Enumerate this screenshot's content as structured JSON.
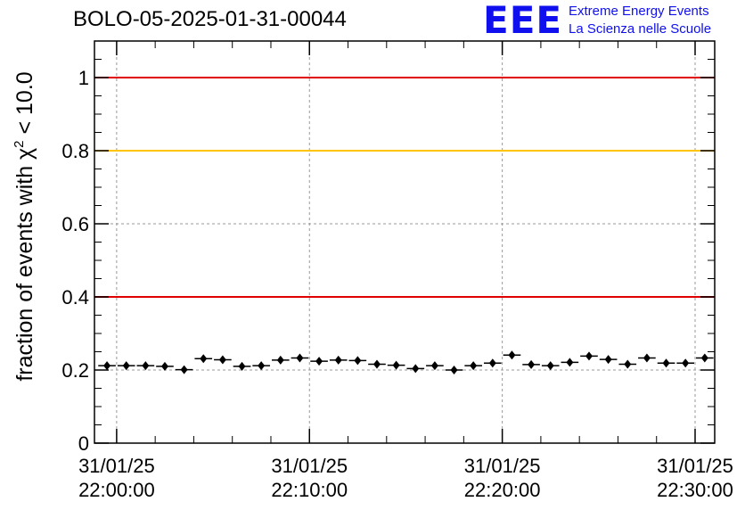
{
  "title": "BOLO-05-2025-01-31-00044",
  "logo": {
    "mark": "EEE",
    "line1": "Extreme Energy Events",
    "line2": "La Scienza nelle Scuole",
    "color": "#1010ee"
  },
  "chart_data": {
    "type": "scatter",
    "title": "BOLO-05-2025-01-31-00044",
    "xlabel": "",
    "ylabel_parts": {
      "base": "fraction of events with ",
      "symbol": "χ",
      "superscript": "2",
      "tail": " < 10.0"
    },
    "ylim": [
      0,
      1.1
    ],
    "yticks": [
      0,
      0.2,
      0.4,
      0.6,
      0.8,
      1
    ],
    "ytick_labels": [
      "0",
      "0.2",
      "0.4",
      "0.6",
      "0.8",
      "1"
    ],
    "xlim": [
      "31/01/25 21:58:51",
      "31/01/25 22:31:01"
    ],
    "xticks": [
      {
        "value": "22:00:00",
        "date": "31/01/25",
        "time": "22:00:00"
      },
      {
        "value": "22:10:00",
        "date": "31/01/25",
        "time": "22:10:00"
      },
      {
        "value": "22:20:00",
        "date": "31/01/25",
        "time": "22:20:00"
      },
      {
        "value": "22:30:00",
        "date": "31/01/25",
        "time": "22:30:00"
      }
    ],
    "grid": true,
    "reference_lines": [
      {
        "y": 1.0,
        "color": "#e00000"
      },
      {
        "y": 0.8,
        "color": "#ffc400"
      },
      {
        "y": 0.4,
        "color": "#e00000"
      }
    ],
    "bin_width_seconds": 60,
    "points": {
      "x": [
        "21:59:30",
        "22:00:30",
        "22:01:30",
        "22:02:30",
        "22:03:30",
        "22:04:30",
        "22:05:30",
        "22:06:30",
        "22:07:30",
        "22:08:30",
        "22:09:30",
        "22:10:30",
        "22:11:30",
        "22:12:30",
        "22:13:30",
        "22:14:30",
        "22:15:30",
        "22:16:30",
        "22:17:30",
        "22:18:30",
        "22:19:30",
        "22:20:30",
        "22:21:30",
        "22:22:30",
        "22:23:30",
        "22:24:30",
        "22:25:30",
        "22:26:30",
        "22:27:30",
        "22:28:30",
        "22:29:30",
        "22:30:30"
      ],
      "y": [
        0.212,
        0.212,
        0.212,
        0.21,
        0.201,
        0.231,
        0.228,
        0.21,
        0.212,
        0.227,
        0.233,
        0.224,
        0.227,
        0.226,
        0.216,
        0.213,
        0.204,
        0.212,
        0.2,
        0.212,
        0.219,
        0.241,
        0.215,
        0.212,
        0.221,
        0.238,
        0.229,
        0.216,
        0.233,
        0.219,
        0.219,
        0.233
      ],
      "yerr": [
        0.005,
        0.005,
        0.005,
        0.005,
        0.005,
        0.005,
        0.005,
        0.005,
        0.005,
        0.005,
        0.005,
        0.005,
        0.005,
        0.005,
        0.005,
        0.005,
        0.005,
        0.005,
        0.005,
        0.005,
        0.005,
        0.005,
        0.005,
        0.005,
        0.005,
        0.005,
        0.005,
        0.005,
        0.005,
        0.005,
        0.005,
        0.005
      ]
    }
  }
}
